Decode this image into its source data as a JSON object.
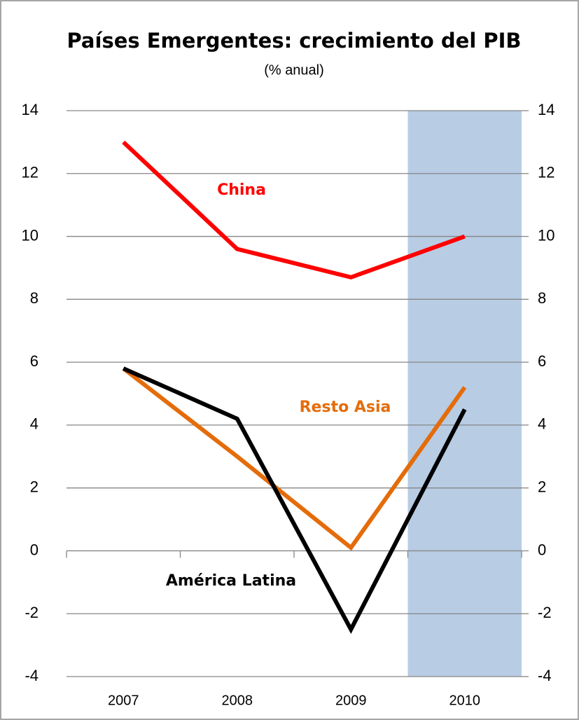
{
  "chart_data": {
    "type": "line",
    "title": "Países Emergentes: crecimiento del PIB",
    "subtitle": "(% anual)",
    "categories": [
      "2007",
      "2008",
      "2009",
      "2010"
    ],
    "series": [
      {
        "name": "China",
        "color": "#ff0000",
        "values": [
          13,
          9.6,
          8.7,
          10
        ]
      },
      {
        "name": "Resto Asia",
        "color": "#e46c0a",
        "values": [
          5.8,
          3.0,
          0.1,
          5.2
        ]
      },
      {
        "name": "América Latina",
        "color": "#000000",
        "values": [
          5.8,
          4.2,
          -2.5,
          4.5
        ]
      }
    ],
    "ylim": [
      -4,
      14
    ],
    "yticks": [
      -4,
      -2,
      0,
      2,
      4,
      6,
      8,
      10,
      12,
      14
    ],
    "y2lim": [
      -4,
      14
    ],
    "y2ticks": [
      -4,
      -2,
      0,
      2,
      4,
      6,
      8,
      10,
      12,
      14
    ],
    "grid": true,
    "shaded_category_index": 3,
    "shade_color": "#b8cce4"
  }
}
